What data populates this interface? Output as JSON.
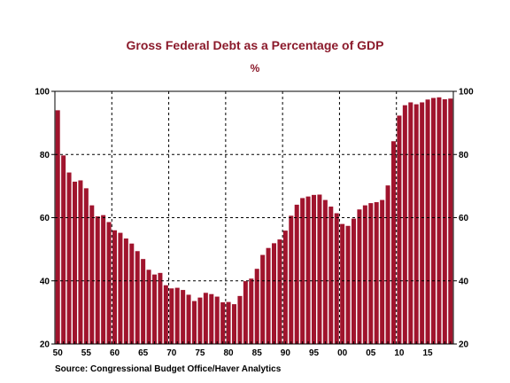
{
  "chart_data": {
    "type": "bar",
    "title": "Gross Federal Debt as a Percentage of GDP",
    "subtitle": "%",
    "source": "Source:  Congressional Budget Office/Haver Analytics",
    "xlabel": "",
    "ylabel": "",
    "x": [
      1950,
      1951,
      1952,
      1953,
      1954,
      1955,
      1956,
      1957,
      1958,
      1959,
      1960,
      1961,
      1962,
      1963,
      1964,
      1965,
      1966,
      1967,
      1968,
      1969,
      1970,
      1971,
      1972,
      1973,
      1974,
      1975,
      1976,
      1977,
      1978,
      1979,
      1980,
      1981,
      1982,
      1983,
      1984,
      1985,
      1986,
      1987,
      1988,
      1989,
      1990,
      1991,
      1992,
      1993,
      1994,
      1995,
      1996,
      1997,
      1998,
      1999,
      2000,
      2001,
      2002,
      2003,
      2004,
      2005,
      2006,
      2007,
      2008,
      2009,
      2010,
      2011,
      2012,
      2013,
      2014,
      2015,
      2016,
      2017,
      2018,
      2019
    ],
    "values": [
      94.0,
      79.7,
      74.3,
      71.4,
      71.8,
      69.3,
      63.9,
      60.4,
      60.8,
      58.6,
      56.0,
      55.2,
      53.4,
      51.8,
      49.4,
      46.9,
      43.5,
      42.0,
      42.5,
      38.6,
      37.6,
      37.8,
      37.1,
      35.6,
      33.6,
      34.7,
      36.2,
      35.8,
      35.0,
      33.2,
      33.3,
      32.6,
      35.2,
      39.9,
      40.7,
      43.8,
      48.2,
      50.4,
      51.9,
      53.1,
      55.9,
      60.6,
      64.1,
      66.2,
      66.7,
      67.2,
      67.3,
      65.6,
      63.5,
      61.4,
      58.0,
      57.4,
      59.7,
      62.6,
      63.9,
      64.6,
      64.9,
      65.6,
      70.2,
      84.2,
      92.3,
      95.6,
      96.5,
      95.9,
      96.5,
      97.4,
      97.9,
      98.1,
      97.5,
      97.7
    ],
    "xticks": [
      {
        "year": 1950,
        "label": "50"
      },
      {
        "year": 1955,
        "label": "55"
      },
      {
        "year": 1960,
        "label": "60"
      },
      {
        "year": 1965,
        "label": "65"
      },
      {
        "year": 1970,
        "label": "70"
      },
      {
        "year": 1975,
        "label": "75"
      },
      {
        "year": 1980,
        "label": "80"
      },
      {
        "year": 1985,
        "label": "85"
      },
      {
        "year": 1990,
        "label": "90"
      },
      {
        "year": 1995,
        "label": "95"
      },
      {
        "year": 2000,
        "label": "00"
      },
      {
        "year": 2005,
        "label": "05"
      },
      {
        "year": 2010,
        "label": "10"
      },
      {
        "year": 2015,
        "label": "15"
      }
    ],
    "yticks": [
      20,
      40,
      60,
      80,
      100
    ],
    "ylim": [
      20,
      100
    ],
    "xrange": [
      1949.5,
      2019.5
    ],
    "vgrid_years": [
      1960,
      1970,
      1980,
      1990,
      2000,
      2010
    ],
    "hgrid_values": [
      40,
      60,
      80
    ],
    "grid": "dashed",
    "y_axis_both_sides": true,
    "bar_color": "#a0142d",
    "text_color": "#8b1a2b"
  }
}
